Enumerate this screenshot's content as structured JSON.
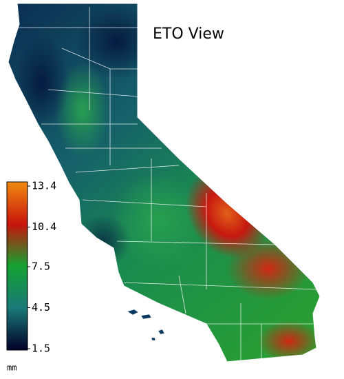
{
  "title": "ETO View",
  "colorbar": {
    "ticks": [
      1.5,
      4.5,
      7.5,
      10.4,
      13.4
    ],
    "range": [
      1.5,
      13.4
    ],
    "colors": [
      "#000028",
      "#1a7a78",
      "#15a030",
      "#c8140c",
      "#f08a10"
    ],
    "unit": "mm"
  }
}
